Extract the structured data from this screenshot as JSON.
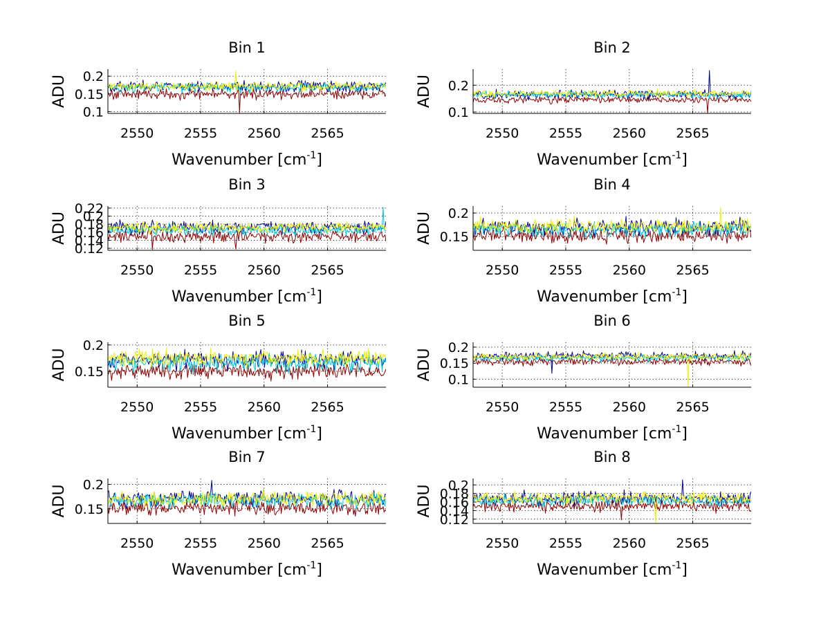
{
  "figure": {
    "background": "#ffffff"
  },
  "chart_data": [
    {
      "type": "line",
      "title": "Bin 1",
      "xlabel": "Wavenumber [cm",
      "xlabel_sup": "-1",
      "xlabel_close": "]",
      "ylabel": "ADU",
      "xlim": [
        2547.7,
        2569.6
      ],
      "ylim": [
        0.095,
        0.22
      ],
      "xticks": [
        2550,
        2555,
        2560,
        2565
      ],
      "xtick_labels": [
        "2550",
        "2555",
        "2560",
        "2565"
      ],
      "yticks": [
        0.1,
        0.15,
        0.2
      ],
      "ytick_labels": [
        "0.1",
        "0.15",
        "0.2"
      ],
      "series": [
        {
          "name": "dark red",
          "color": "#8b0000",
          "mean": 0.15,
          "amp": 0.014,
          "spikes": [
            [
              2558.1,
              0.097
            ]
          ]
        },
        {
          "name": "blue",
          "color": "#00008f",
          "mean": 0.172,
          "amp": 0.014,
          "spikes": []
        },
        {
          "name": "cyan",
          "color": "#00c8e0",
          "mean": 0.168,
          "amp": 0.012,
          "spikes": []
        },
        {
          "name": "yellow",
          "color": "#f0f000",
          "mean": 0.172,
          "amp": 0.012,
          "spikes": [
            [
              2557.8,
              0.215
            ]
          ]
        }
      ]
    },
    {
      "type": "line",
      "title": "Bin 2",
      "xlabel": "Wavenumber [cm",
      "xlabel_sup": "-1",
      "xlabel_close": "]",
      "ylabel": "ADU",
      "xlim": [
        2547.7,
        2569.6
      ],
      "ylim": [
        0.095,
        0.26
      ],
      "xticks": [
        2550,
        2555,
        2560,
        2565
      ],
      "xtick_labels": [
        "2550",
        "2555",
        "2560",
        "2565"
      ],
      "yticks": [
        0.1,
        0.2
      ],
      "ytick_labels": [
        "0.1",
        "0.2"
      ],
      "series": [
        {
          "name": "dark red",
          "color": "#8b0000",
          "mean": 0.146,
          "amp": 0.012,
          "spikes": [
            [
              2566.2,
              0.097
            ]
          ]
        },
        {
          "name": "blue",
          "color": "#00008f",
          "mean": 0.165,
          "amp": 0.014,
          "spikes": [
            [
              2566.3,
              0.255
            ]
          ]
        },
        {
          "name": "cyan",
          "color": "#00c8e0",
          "mean": 0.165,
          "amp": 0.012,
          "spikes": []
        },
        {
          "name": "yellow",
          "color": "#f0f000",
          "mean": 0.17,
          "amp": 0.012,
          "spikes": []
        }
      ]
    },
    {
      "type": "line",
      "title": "Bin 3",
      "xlabel": "Wavenumber [cm",
      "xlabel_sup": "-1",
      "xlabel_close": "]",
      "ylabel": "ADU",
      "xlim": [
        2547.7,
        2569.6
      ],
      "ylim": [
        0.115,
        0.225
      ],
      "xticks": [
        2550,
        2555,
        2560,
        2565
      ],
      "xtick_labels": [
        "2550",
        "2555",
        "2560",
        "2565"
      ],
      "yticks": [
        0.12,
        0.14,
        0.16,
        0.18,
        0.2,
        0.22
      ],
      "ytick_labels": [
        "0.12",
        "0.14",
        "0.16",
        "0.18",
        "0.2",
        "0.22"
      ],
      "series": [
        {
          "name": "dark red",
          "color": "#8b0000",
          "mean": 0.15,
          "amp": 0.013,
          "spikes": [
            [
              2551.2,
              0.117
            ],
            [
              2557.8,
              0.118
            ]
          ]
        },
        {
          "name": "blue",
          "color": "#00008f",
          "mean": 0.172,
          "amp": 0.015,
          "spikes": []
        },
        {
          "name": "cyan",
          "color": "#00c8e0",
          "mean": 0.166,
          "amp": 0.012,
          "spikes": [
            [
              2569.4,
              0.222
            ]
          ]
        },
        {
          "name": "yellow",
          "color": "#f0f000",
          "mean": 0.172,
          "amp": 0.012,
          "spikes": []
        }
      ]
    },
    {
      "type": "line",
      "title": "Bin 4",
      "xlabel": "Wavenumber [cm",
      "xlabel_sup": "-1",
      "xlabel_close": "]",
      "ylabel": "ADU",
      "xlim": [
        2547.7,
        2569.6
      ],
      "ylim": [
        0.12,
        0.215
      ],
      "xticks": [
        2550,
        2555,
        2560,
        2565
      ],
      "xtick_labels": [
        "2550",
        "2555",
        "2560",
        "2565"
      ],
      "yticks": [
        0.15,
        0.2
      ],
      "ytick_labels": [
        "0.15",
        "0.2"
      ],
      "series": [
        {
          "name": "dark red",
          "color": "#8b0000",
          "mean": 0.152,
          "amp": 0.014,
          "spikes": []
        },
        {
          "name": "blue",
          "color": "#00008f",
          "mean": 0.17,
          "amp": 0.016,
          "spikes": []
        },
        {
          "name": "cyan",
          "color": "#00c8e0",
          "mean": 0.165,
          "amp": 0.014,
          "spikes": []
        },
        {
          "name": "yellow",
          "color": "#f0f000",
          "mean": 0.172,
          "amp": 0.014,
          "spikes": [
            [
              2567.2,
              0.212
            ]
          ]
        }
      ]
    },
    {
      "type": "line",
      "title": "Bin 5",
      "xlabel": "Wavenumber [cm",
      "xlabel_sup": "-1",
      "xlabel_close": "]",
      "ylabel": "ADU",
      "xlim": [
        2547.7,
        2569.6
      ],
      "ylim": [
        0.12,
        0.205
      ],
      "xticks": [
        2550,
        2555,
        2560,
        2565
      ],
      "xtick_labels": [
        "2550",
        "2555",
        "2560",
        "2565"
      ],
      "yticks": [
        0.15,
        0.2
      ],
      "ytick_labels": [
        "0.15",
        "0.2"
      ],
      "series": [
        {
          "name": "dark red",
          "color": "#8b0000",
          "mean": 0.15,
          "amp": 0.014,
          "spikes": []
        },
        {
          "name": "blue",
          "color": "#00008f",
          "mean": 0.172,
          "amp": 0.015,
          "spikes": []
        },
        {
          "name": "cyan",
          "color": "#00c8e0",
          "mean": 0.166,
          "amp": 0.014,
          "spikes": []
        },
        {
          "name": "yellow",
          "color": "#f0f000",
          "mean": 0.176,
          "amp": 0.014,
          "spikes": []
        }
      ]
    },
    {
      "type": "line",
      "title": "Bin 6",
      "xlabel": "Wavenumber [cm",
      "xlabel_sup": "-1",
      "xlabel_close": "]",
      "ylabel": "ADU",
      "xlim": [
        2547.7,
        2569.6
      ],
      "ylim": [
        0.075,
        0.215
      ],
      "xticks": [
        2550,
        2555,
        2560,
        2565
      ],
      "xtick_labels": [
        "2550",
        "2555",
        "2560",
        "2565"
      ],
      "yticks": [
        0.1,
        0.15,
        0.2
      ],
      "ytick_labels": [
        "0.1",
        "0.15",
        "0.2"
      ],
      "series": [
        {
          "name": "dark red",
          "color": "#8b0000",
          "mean": 0.155,
          "amp": 0.011,
          "spikes": []
        },
        {
          "name": "blue",
          "color": "#00008f",
          "mean": 0.172,
          "amp": 0.012,
          "spikes": [
            [
              2553.9,
              0.118
            ]
          ]
        },
        {
          "name": "cyan",
          "color": "#00c8e0",
          "mean": 0.166,
          "amp": 0.01,
          "spikes": []
        },
        {
          "name": "yellow",
          "color": "#f0f000",
          "mean": 0.17,
          "amp": 0.01,
          "spikes": [
            [
              2564.6,
              0.078
            ]
          ]
        }
      ]
    },
    {
      "type": "line",
      "title": "Bin 7",
      "xlabel": "Wavenumber [cm",
      "xlabel_sup": "-1",
      "xlabel_close": "]",
      "ylabel": "ADU",
      "xlim": [
        2547.7,
        2569.6
      ],
      "ylim": [
        0.12,
        0.212
      ],
      "xticks": [
        2550,
        2555,
        2560,
        2565
      ],
      "xtick_labels": [
        "2550",
        "2555",
        "2560",
        "2565"
      ],
      "yticks": [
        0.15,
        0.2
      ],
      "ytick_labels": [
        "0.15",
        "0.2"
      ],
      "series": [
        {
          "name": "dark red",
          "color": "#8b0000",
          "mean": 0.152,
          "amp": 0.014,
          "spikes": []
        },
        {
          "name": "blue",
          "color": "#00008f",
          "mean": 0.172,
          "amp": 0.015,
          "spikes": [
            [
              2555.9,
              0.208
            ]
          ]
        },
        {
          "name": "cyan",
          "color": "#00c8e0",
          "mean": 0.166,
          "amp": 0.014,
          "spikes": []
        },
        {
          "name": "yellow",
          "color": "#f0f000",
          "mean": 0.172,
          "amp": 0.014,
          "spikes": []
        }
      ]
    },
    {
      "type": "line",
      "title": "Bin 8",
      "xlabel": "Wavenumber [cm",
      "xlabel_sup": "-1",
      "xlabel_close": "]",
      "ylabel": "ADU",
      "xlim": [
        2547.7,
        2569.6
      ],
      "ylim": [
        0.11,
        0.215
      ],
      "xticks": [
        2550,
        2555,
        2560,
        2565
      ],
      "xtick_labels": [
        "2550",
        "2555",
        "2560",
        "2565"
      ],
      "yticks": [
        0.12,
        0.14,
        0.16,
        0.18,
        0.2
      ],
      "ytick_labels": [
        "0.12",
        "0.14",
        "0.16",
        "0.18",
        "0.2"
      ],
      "series": [
        {
          "name": "dark red",
          "color": "#8b0000",
          "mean": 0.15,
          "amp": 0.012,
          "spikes": [
            [
              2559.4,
              0.118
            ]
          ]
        },
        {
          "name": "blue",
          "color": "#00008f",
          "mean": 0.168,
          "amp": 0.014,
          "spikes": [
            [
              2564.2,
              0.212
            ]
          ]
        },
        {
          "name": "cyan",
          "color": "#00c8e0",
          "mean": 0.164,
          "amp": 0.012,
          "spikes": []
        },
        {
          "name": "yellow",
          "color": "#f0f000",
          "mean": 0.17,
          "amp": 0.012,
          "spikes": [
            [
              2562.1,
              0.112
            ]
          ]
        }
      ]
    }
  ]
}
